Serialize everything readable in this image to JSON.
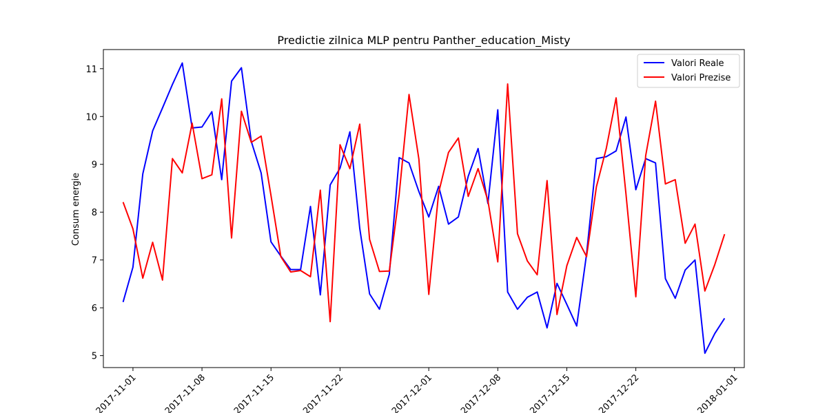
{
  "chart_data": {
    "type": "line",
    "title": "Predictie zilnica MLP pentru Panther_education_Misty",
    "xlabel": "",
    "ylabel": "Consum energie",
    "ylim": [
      4.75,
      11.4
    ],
    "xlim": [
      "2017-10-29",
      "2018-01-02"
    ],
    "grid": false,
    "legend_position": "top-right",
    "x_ticks": [
      "2017-11-01",
      "2017-11-08",
      "2017-11-15",
      "2017-11-22",
      "2017-12-01",
      "2017-12-08",
      "2017-12-15",
      "2017-12-22",
      "2018-01-01"
    ],
    "y_ticks": [
      5,
      6,
      7,
      8,
      9,
      10,
      11
    ],
    "x": [
      "2017-10-31",
      "2017-11-01",
      "2017-11-02",
      "2017-11-03",
      "2017-11-04",
      "2017-11-05",
      "2017-11-06",
      "2017-11-07",
      "2017-11-08",
      "2017-11-09",
      "2017-11-10",
      "2017-11-11",
      "2017-11-12",
      "2017-11-13",
      "2017-11-14",
      "2017-11-15",
      "2017-11-16",
      "2017-11-17",
      "2017-11-18",
      "2017-11-19",
      "2017-11-20",
      "2017-11-21",
      "2017-11-22",
      "2017-11-23",
      "2017-11-24",
      "2017-11-25",
      "2017-11-26",
      "2017-11-27",
      "2017-11-28",
      "2017-11-29",
      "2017-11-30",
      "2017-12-01",
      "2017-12-02",
      "2017-12-03",
      "2017-12-04",
      "2017-12-05",
      "2017-12-06",
      "2017-12-07",
      "2017-12-08",
      "2017-12-09",
      "2017-12-10",
      "2017-12-11",
      "2017-12-12",
      "2017-12-13",
      "2017-12-14",
      "2017-12-15",
      "2017-12-16",
      "2017-12-17",
      "2017-12-18",
      "2017-12-19",
      "2017-12-20",
      "2017-12-21",
      "2017-12-22",
      "2017-12-23",
      "2017-12-24",
      "2017-12-25",
      "2017-12-26",
      "2017-12-27",
      "2017-12-28",
      "2017-12-29",
      "2017-12-30",
      "2017-12-31"
    ],
    "series": [
      {
        "name": "Valori Reale",
        "color": "#0000ff",
        "values": [
          6.12,
          6.85,
          8.8,
          9.7,
          10.18,
          10.67,
          11.12,
          9.76,
          9.78,
          10.1,
          8.68,
          10.74,
          11.02,
          9.48,
          8.82,
          7.38,
          7.08,
          6.8,
          6.8,
          8.12,
          6.27,
          8.57,
          8.92,
          9.68,
          7.66,
          6.29,
          5.97,
          6.7,
          9.14,
          9.03,
          8.43,
          7.9,
          8.54,
          7.75,
          7.9,
          8.75,
          9.33,
          8.18,
          10.14,
          6.33,
          5.97,
          6.22,
          6.33,
          5.58,
          6.51,
          6.07,
          5.62,
          7.12,
          9.12,
          9.16,
          9.28,
          9.99,
          8.47,
          9.12,
          9.03,
          6.61,
          6.2,
          6.79,
          7.0,
          5.05,
          5.46,
          5.78
        ]
      },
      {
        "name": "Valori Prezise",
        "color": "#ff0000",
        "values": [
          8.21,
          7.65,
          6.62,
          7.37,
          6.58,
          9.12,
          8.82,
          9.86,
          8.7,
          8.78,
          10.37,
          7.46,
          10.11,
          9.46,
          9.59,
          8.35,
          7.07,
          6.75,
          6.78,
          6.65,
          8.46,
          5.71,
          9.41,
          8.91,
          9.84,
          7.43,
          6.76,
          6.77,
          8.37,
          10.46,
          9.11,
          6.28,
          8.41,
          9.25,
          9.55,
          8.33,
          8.91,
          8.24,
          6.96,
          10.68,
          7.55,
          6.98,
          6.69,
          8.66,
          5.86,
          6.88,
          7.47,
          7.07,
          8.53,
          9.33,
          10.39,
          8.38,
          6.23,
          9.18,
          10.32,
          8.59,
          8.68,
          7.35,
          7.75,
          6.35,
          6.9,
          7.54
        ]
      }
    ]
  }
}
